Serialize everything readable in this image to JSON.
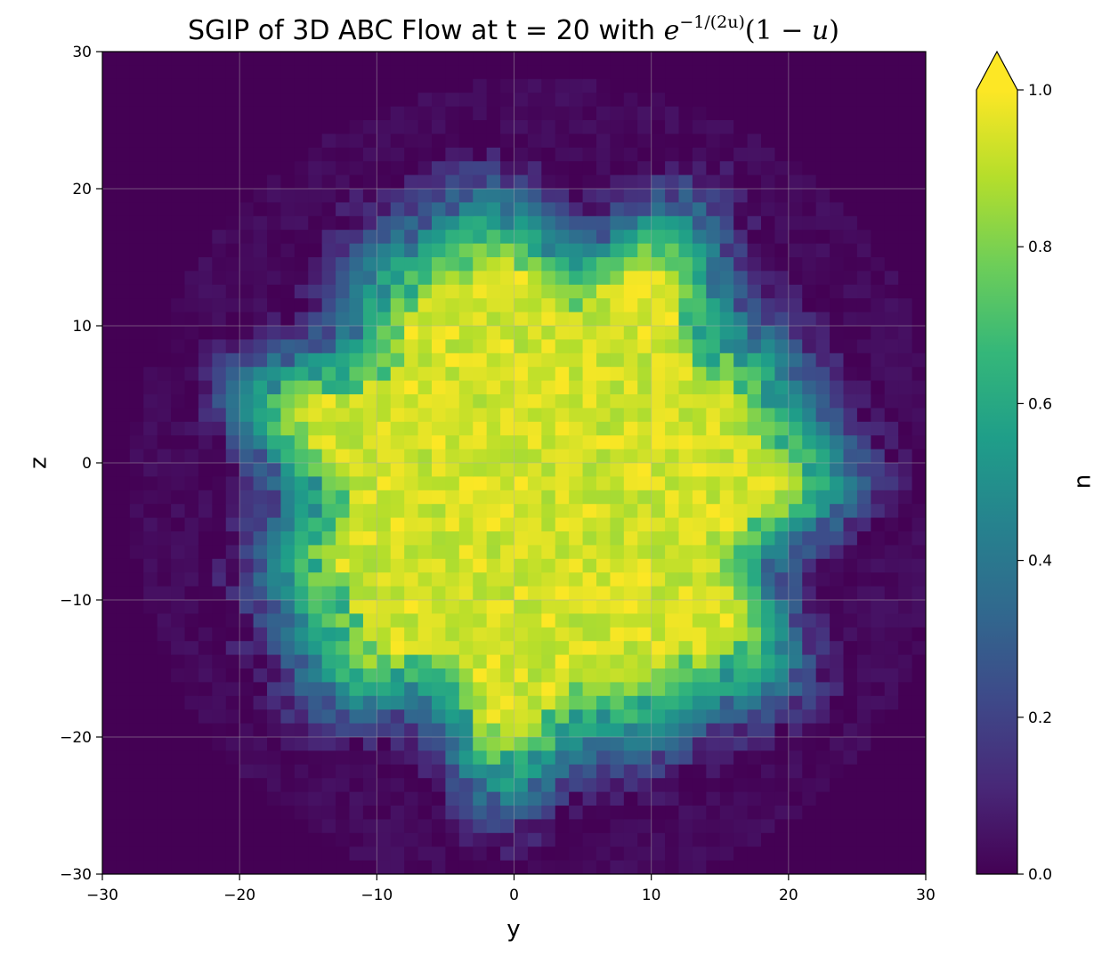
{
  "chart_data": {
    "type": "heatmap",
    "title": {
      "prefix": "SGIP of 3D ABC Flow at t = 20 with ",
      "math_base": "e",
      "math_exponent": "−1/(2u)",
      "math_factor_open": "(1 − ",
      "math_factor_var": "u",
      "math_factor_close": ")"
    },
    "xlabel": "y",
    "ylabel": "z",
    "xlim": [
      -30,
      30
    ],
    "ylim": [
      -30,
      30
    ],
    "x_ticks": [
      "−30",
      "−20",
      "−10",
      "0",
      "10",
      "20",
      "30"
    ],
    "y_ticks": [
      "−30",
      "−20",
      "−10",
      "0",
      "10",
      "20",
      "30"
    ],
    "x_tick_values": [
      -30,
      -20,
      -10,
      0,
      10,
      20,
      30
    ],
    "y_tick_values": [
      -30,
      -20,
      -10,
      0,
      10,
      20,
      30
    ],
    "grid": true,
    "colormap": "viridis",
    "colorbar": {
      "label": "u",
      "range": [
        0.0,
        1.0
      ],
      "ticks": [
        "0.0",
        "0.2",
        "0.4",
        "0.6",
        "0.8",
        "1.0"
      ],
      "tick_values": [
        0.0,
        0.2,
        0.4,
        0.6,
        0.8,
        1.0
      ],
      "extend": "max"
    },
    "field": {
      "description_fields": "radial plateau centred near (y,z) = (2,-2), value ~1 inside radius ~14, falling to 0 near radius ~26, with lobed boundary and cell noise",
      "center": [
        2.0,
        -2.0
      ],
      "plateau_radius": 14.0,
      "edge_radius": 26.0,
      "bins": 60
    }
  },
  "colors": {
    "viridis_stops": [
      "#440154",
      "#482878",
      "#3e4989",
      "#31688e",
      "#26828e",
      "#1f9e89",
      "#35b779",
      "#6ece58",
      "#b5de2b",
      "#fde725"
    ],
    "grid": "#b0b0b0",
    "frame": "#000000"
  }
}
